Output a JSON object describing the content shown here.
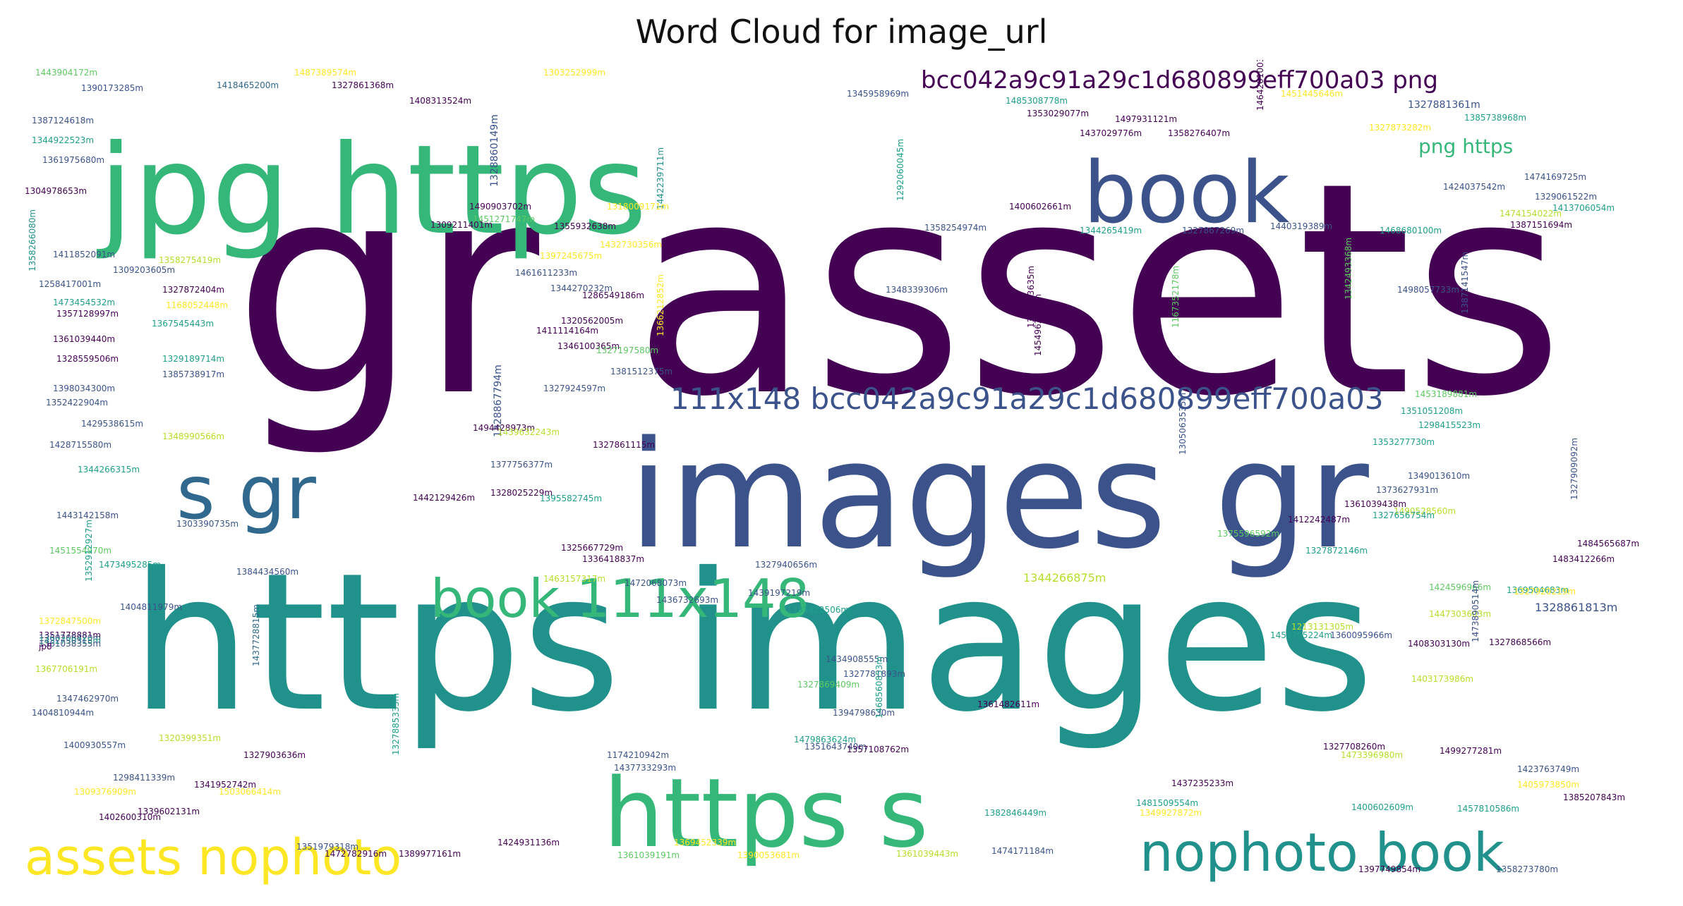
{
  "title": "Word Cloud for image_url",
  "palette": {
    "dark_purple": "#440154",
    "indigo": "#3b528b",
    "blue_teal": "#31688e",
    "teal": "#21918c",
    "green_teal": "#1f9e89",
    "green": "#35b779",
    "light_green": "#5ec962",
    "yellow_green": "#b5de2b",
    "yellow": "#fde725"
  },
  "words": [
    {
      "text": "gr assets",
      "weight": 1.0,
      "color": "#440154"
    },
    {
      "text": "https images",
      "weight": 0.88,
      "color": "#21918c"
    },
    {
      "text": "images gr",
      "weight": 0.66,
      "color": "#3b528b"
    },
    {
      "text": "jpg https",
      "weight": 0.55,
      "color": "#35b779"
    },
    {
      "text": "https s",
      "weight": 0.4,
      "color": "#35b779"
    },
    {
      "text": "book",
      "weight": 0.34,
      "color": "#3b528b"
    },
    {
      "text": "s gr",
      "weight": 0.3,
      "color": "#31688e"
    },
    {
      "text": "book 111x148",
      "weight": 0.22,
      "color": "#35b779"
    },
    {
      "text": "nophoto book",
      "weight": 0.22,
      "color": "#21918c"
    },
    {
      "text": "assets nophoto",
      "weight": 0.22,
      "color": "#fde725"
    },
    {
      "text": "111x148 bcc042a9c91a29c1d680899eff700a03",
      "weight": 0.12,
      "color": "#3b528b"
    },
    {
      "text": "bcc042a9c91a29c1d680899eff700a03 png",
      "weight": 0.1,
      "color": "#440154"
    },
    {
      "text": "png https",
      "weight": 0.09,
      "color": "#35b779"
    },
    {
      "text": "1328861813m",
      "weight": 0.05,
      "color": "#3b528b"
    },
    {
      "text": "1327881361m",
      "weight": 0.045,
      "color": "#3b528b"
    },
    {
      "text": "1344266875m",
      "weight": 0.045,
      "color": "#b5de2b"
    },
    {
      "text": "1328860149m",
      "weight": 0.045,
      "color": "#3b528b"
    },
    {
      "text": "1328867794m",
      "weight": 0.045,
      "color": "#3b528b"
    },
    {
      "text": "1443904172m",
      "weight": 0.03,
      "color": "#5ec962"
    },
    {
      "text": "1390173285m",
      "weight": 0.03,
      "color": "#3b528b"
    },
    {
      "text": "1387124618m",
      "weight": 0.03,
      "color": "#3b528b"
    },
    {
      "text": "1344922523m",
      "weight": 0.03,
      "color": "#1f9e89"
    },
    {
      "text": "1361975680m",
      "weight": 0.03,
      "color": "#3b528b"
    },
    {
      "text": "1304978653m",
      "weight": 0.03,
      "color": "#440154"
    },
    {
      "text": "1487389574m",
      "weight": 0.03,
      "color": "#fde725"
    },
    {
      "text": "1418465200m",
      "weight": 0.03,
      "color": "#31688e"
    },
    {
      "text": "1327861368m",
      "weight": 0.03,
      "color": "#440154"
    },
    {
      "text": "1408313524m",
      "weight": 0.03,
      "color": "#440154"
    },
    {
      "text": "1303252999m",
      "weight": 0.03,
      "color": "#fde725"
    },
    {
      "text": "1345958969m",
      "weight": 0.03,
      "color": "#3b528b"
    },
    {
      "text": "1485308778m",
      "weight": 0.03,
      "color": "#1f9e89"
    },
    {
      "text": "1353029077m",
      "weight": 0.03,
      "color": "#440154"
    },
    {
      "text": "1497931121m",
      "weight": 0.03,
      "color": "#440154"
    },
    {
      "text": "1437029776m",
      "weight": 0.03,
      "color": "#440154"
    },
    {
      "text": "1358276407m",
      "weight": 0.03,
      "color": "#440154"
    },
    {
      "text": "1451445646m",
      "weight": 0.03,
      "color": "#fde725"
    },
    {
      "text": "1327873282m",
      "weight": 0.03,
      "color": "#fde725"
    },
    {
      "text": "1385738968m",
      "weight": 0.03,
      "color": "#1f9e89"
    },
    {
      "text": "1474169725m",
      "weight": 0.03,
      "color": "#3b528b"
    },
    {
      "text": "1424037542m",
      "weight": 0.03,
      "color": "#3b528b"
    },
    {
      "text": "1329061522m",
      "weight": 0.03,
      "color": "#3b528b"
    },
    {
      "text": "1474154022m",
      "weight": 0.03,
      "color": "#b5de2b"
    },
    {
      "text": "1413706054m",
      "weight": 0.03,
      "color": "#1f9e89"
    },
    {
      "text": "1387151694m",
      "weight": 0.03,
      "color": "#440154"
    },
    {
      "text": "1468680100m",
      "weight": 0.03,
      "color": "#1f9e89"
    },
    {
      "text": "1440319389m",
      "weight": 0.03,
      "color": "#3b528b"
    },
    {
      "text": "1327867269m",
      "weight": 0.03,
      "color": "#3b528b"
    },
    {
      "text": "1344265419m",
      "weight": 0.03,
      "color": "#1f9e89"
    },
    {
      "text": "1358254974m",
      "weight": 0.03,
      "color": "#3b528b"
    },
    {
      "text": "1400602661m",
      "weight": 0.03,
      "color": "#440154"
    },
    {
      "text": "1442239711m",
      "weight": 0.03,
      "color": "#21918c"
    },
    {
      "text": "1490903702m",
      "weight": 0.03,
      "color": "#440154"
    },
    {
      "text": "1318009171m",
      "weight": 0.03,
      "color": "#fde725"
    },
    {
      "text": "1451271747m",
      "weight": 0.03,
      "color": "#5ec962"
    },
    {
      "text": "1309211401m",
      "weight": 0.03,
      "color": "#440154"
    },
    {
      "text": "1355932638m",
      "weight": 0.03,
      "color": "#440154"
    },
    {
      "text": "1358266080m",
      "weight": 0.03,
      "color": "#21918c"
    },
    {
      "text": "1411852091m",
      "weight": 0.03,
      "color": "#3b528b"
    },
    {
      "text": "1358275419m",
      "weight": 0.03,
      "color": "#b5de2b"
    },
    {
      "text": "1309203605m",
      "weight": 0.03,
      "color": "#3b528b"
    },
    {
      "text": "1258417001m",
      "weight": 0.03,
      "color": "#3b528b"
    },
    {
      "text": "1327872404m",
      "weight": 0.03,
      "color": "#440154"
    },
    {
      "text": "1473454532m",
      "weight": 0.03,
      "color": "#1f9e89"
    },
    {
      "text": "1168052448m",
      "weight": 0.03,
      "color": "#fde725"
    },
    {
      "text": "1357128997m",
      "weight": 0.03,
      "color": "#440154"
    },
    {
      "text": "1367545443m",
      "weight": 0.03,
      "color": "#1f9e89"
    },
    {
      "text": "1361039440m",
      "weight": 0.03,
      "color": "#440154"
    },
    {
      "text": "1328559506m",
      "weight": 0.03,
      "color": "#440154"
    },
    {
      "text": "1329189714m",
      "weight": 0.03,
      "color": "#1f9e89"
    },
    {
      "text": "1385738917m",
      "weight": 0.03,
      "color": "#3b528b"
    },
    {
      "text": "1398034300m",
      "weight": 0.03,
      "color": "#3b528b"
    },
    {
      "text": "1352422904m",
      "weight": 0.03,
      "color": "#3b528b"
    },
    {
      "text": "1429538615m",
      "weight": 0.03,
      "color": "#3b528b"
    },
    {
      "text": "1428715580m",
      "weight": 0.03,
      "color": "#3b528b"
    },
    {
      "text": "1348990566m",
      "weight": 0.03,
      "color": "#b5de2b"
    },
    {
      "text": "1344266315m",
      "weight": 0.03,
      "color": "#1f9e89"
    },
    {
      "text": "1443142158m",
      "weight": 0.03,
      "color": "#3b528b"
    },
    {
      "text": "1303390735m",
      "weight": 0.03,
      "color": "#3b528b"
    },
    {
      "text": "1451554970m",
      "weight": 0.03,
      "color": "#5ec962"
    },
    {
      "text": "1473495285m",
      "weight": 0.03,
      "color": "#1f9e89"
    },
    {
      "text": "1384434560m",
      "weight": 0.03,
      "color": "#3b528b"
    },
    {
      "text": "1352912927m",
      "weight": 0.03,
      "color": "#1f9e89"
    },
    {
      "text": "1404811979m",
      "weight": 0.03,
      "color": "#3b528b"
    },
    {
      "text": "1372847500m",
      "weight": 0.03,
      "color": "#fde725"
    },
    {
      "text": "1437728815m",
      "weight": 0.03,
      "color": "#31688e"
    },
    {
      "text": "1367706191m",
      "weight": 0.03,
      "color": "#b5de2b"
    },
    {
      "text": "1347462970m",
      "weight": 0.03,
      "color": "#3b528b"
    },
    {
      "text": "1404810944m",
      "weight": 0.03,
      "color": "#3b528b"
    },
    {
      "text": "1400930557m",
      "weight": 0.03,
      "color": "#3b528b"
    },
    {
      "text": "1320399351m",
      "weight": 0.03,
      "color": "#b5de2b"
    },
    {
      "text": "1327903636m",
      "weight": 0.03,
      "color": "#440154"
    },
    {
      "text": "1298411339m",
      "weight": 0.03,
      "color": "#3b528b"
    },
    {
      "text": "1341952742m",
      "weight": 0.03,
      "color": "#440154"
    },
    {
      "text": "1309376909m",
      "weight": 0.03,
      "color": "#fde725"
    },
    {
      "text": "1503066414m",
      "weight": 0.03,
      "color": "#fde725"
    },
    {
      "text": "1402600310m",
      "weight": 0.03,
      "color": "#440154"
    },
    {
      "text": "1339602131m",
      "weight": 0.03,
      "color": "#440154"
    },
    {
      "text": "1351979318m",
      "weight": 0.03,
      "color": "#3b528b"
    },
    {
      "text": "1472782916m",
      "weight": 0.03,
      "color": "#440154"
    },
    {
      "text": "1389977161m",
      "weight": 0.03,
      "color": "#440154"
    },
    {
      "text": "1424931136m",
      "weight": 0.03,
      "color": "#440154"
    },
    {
      "text": "1361039191m",
      "weight": 0.03,
      "color": "#5ec962"
    },
    {
      "text": "1369452339m",
      "weight": 0.03,
      "color": "#fde725"
    },
    {
      "text": "1390053681m",
      "weight": 0.03,
      "color": "#fde725"
    },
    {
      "text": "1361039443m",
      "weight": 0.03,
      "color": "#b5de2b"
    },
    {
      "text": "1474171184m",
      "weight": 0.03,
      "color": "#3b528b"
    },
    {
      "text": "1397749854m",
      "weight": 0.03,
      "color": "#440154"
    },
    {
      "text": "1358273780m",
      "weight": 0.03,
      "color": "#3b528b"
    },
    {
      "text": "1397245675m",
      "weight": 0.03,
      "color": "#fde725"
    },
    {
      "text": "1432730356m",
      "weight": 0.03,
      "color": "#fde725"
    },
    {
      "text": "1461611233m",
      "weight": 0.03,
      "color": "#3b528b"
    },
    {
      "text": "1344270232m",
      "weight": 0.03,
      "color": "#3b528b"
    },
    {
      "text": "1286549186m",
      "weight": 0.03,
      "color": "#440154"
    },
    {
      "text": "1366212852m",
      "weight": 0.03,
      "color": "#fde725"
    },
    {
      "text": "1320562005m",
      "weight": 0.03,
      "color": "#440154"
    },
    {
      "text": "1411114164m",
      "weight": 0.03,
      "color": "#440154"
    },
    {
      "text": "1346100365m",
      "weight": 0.03,
      "color": "#440154"
    },
    {
      "text": "1327197580m",
      "weight": 0.03,
      "color": "#5ec962"
    },
    {
      "text": "1381512375m",
      "weight": 0.03,
      "color": "#3b528b"
    },
    {
      "text": "1327924597m",
      "weight": 0.03,
      "color": "#3b528b"
    },
    {
      "text": "1327861115m",
      "weight": 0.03,
      "color": "#440154"
    },
    {
      "text": "1494428973m",
      "weight": 0.03,
      "color": "#440154"
    },
    {
      "text": "1439632243m",
      "weight": 0.03,
      "color": "#b5de2b"
    },
    {
      "text": "1377756377m",
      "weight": 0.03,
      "color": "#3b528b"
    },
    {
      "text": "1328025229m",
      "weight": 0.03,
      "color": "#440154"
    },
    {
      "text": "1442129426m",
      "weight": 0.03,
      "color": "#440154"
    },
    {
      "text": "1395582745m",
      "weight": 0.03,
      "color": "#1f9e89"
    },
    {
      "text": "1325667729m",
      "weight": 0.03,
      "color": "#440154"
    },
    {
      "text": "1336418837m",
      "weight": 0.03,
      "color": "#440154"
    },
    {
      "text": "1472068073m",
      "weight": 0.03,
      "color": "#3b528b"
    },
    {
      "text": "1327940656m",
      "weight": 0.03,
      "color": "#3b528b"
    },
    {
      "text": "1463157317m",
      "weight": 0.03,
      "color": "#b5de2b"
    },
    {
      "text": "1436732693m",
      "weight": 0.03,
      "color": "#3b528b"
    },
    {
      "text": "1439197219m",
      "weight": 0.03,
      "color": "#3b528b"
    },
    {
      "text": "1333822506m",
      "weight": 0.03,
      "color": "#1f9e89"
    },
    {
      "text": "1434908555m",
      "weight": 0.03,
      "color": "#3b528b"
    },
    {
      "text": "1327781893m",
      "weight": 0.03,
      "color": "#3b528b"
    },
    {
      "text": "1327869409m",
      "weight": 0.03,
      "color": "#5ec962"
    },
    {
      "text": "1394798630m",
      "weight": 0.03,
      "color": "#3b528b"
    },
    {
      "text": "1468560853m",
      "weight": 0.03,
      "color": "#1f9e89"
    },
    {
      "text": "1479863624m",
      "weight": 0.03,
      "color": "#1f9e89"
    },
    {
      "text": "1351643740m",
      "weight": 0.03,
      "color": "#3b528b"
    },
    {
      "text": "1174210942m",
      "weight": 0.03,
      "color": "#3b528b"
    },
    {
      "text": "1357108762m",
      "weight": 0.03,
      "color": "#440154"
    },
    {
      "text": "1327885335m",
      "weight": 0.03,
      "color": "#1f9e89"
    },
    {
      "text": "1437733293m",
      "weight": 0.03,
      "color": "#3b528b"
    },
    {
      "text": "1348339306m",
      "weight": 0.03,
      "color": "#3b528b"
    },
    {
      "text": "1498057733m",
      "weight": 0.03,
      "color": "#3b528b"
    },
    {
      "text": "1327873635m",
      "weight": 0.03,
      "color": "#440154"
    },
    {
      "text": "1454962884m",
      "weight": 0.03,
      "color": "#440154"
    },
    {
      "text": "1167352178m",
      "weight": 0.03,
      "color": "#5ec962"
    },
    {
      "text": "1342493368m",
      "weight": 0.03,
      "color": "#5ec962"
    },
    {
      "text": "1387141547m",
      "weight": 0.03,
      "color": "#3b528b"
    },
    {
      "text": "1292060045m",
      "weight": 0.03,
      "color": "#1f9e89"
    },
    {
      "text": "1464201003m",
      "weight": 0.03,
      "color": "#440154"
    },
    {
      "text": "1453189881m",
      "weight": 0.03,
      "color": "#5ec962"
    },
    {
      "text": "1351051208m",
      "weight": 0.03,
      "color": "#1f9e89"
    },
    {
      "text": "1298415523m",
      "weight": 0.03,
      "color": "#1f9e89"
    },
    {
      "text": "1353277730m",
      "weight": 0.03,
      "color": "#1f9e89"
    },
    {
      "text": "1305063535m",
      "weight": 0.03,
      "color": "#3b528b"
    },
    {
      "text": "1349013610m",
      "weight": 0.03,
      "color": "#3b528b"
    },
    {
      "text": "1373627931m",
      "weight": 0.03,
      "color": "#3b528b"
    },
    {
      "text": "1361039438m",
      "weight": 0.03,
      "color": "#440154"
    },
    {
      "text": "1490528560m",
      "weight": 0.03,
      "color": "#b5de2b"
    },
    {
      "text": "1412242487m",
      "weight": 0.03,
      "color": "#440154"
    },
    {
      "text": "1327656754m",
      "weight": 0.03,
      "color": "#1f9e89"
    },
    {
      "text": "1375596592m",
      "weight": 0.03,
      "color": "#5ec962"
    },
    {
      "text": "1327872146m",
      "weight": 0.03,
      "color": "#1f9e89"
    },
    {
      "text": "1424596966m",
      "weight": 0.03,
      "color": "#5ec962"
    },
    {
      "text": "1369504683m",
      "weight": 0.03,
      "color": "#1f9e89"
    },
    {
      "text": "1447303603m",
      "weight": 0.03,
      "color": "#b5de2b"
    },
    {
      "text": "1213131305m",
      "weight": 0.03,
      "color": "#b5de2b"
    },
    {
      "text": "1360095966m",
      "weight": 0.03,
      "color": "#3b528b"
    },
    {
      "text": "1327868566m",
      "weight": 0.03,
      "color": "#440154"
    },
    {
      "text": "1459795224m",
      "weight": 0.03,
      "color": "#1f9e89"
    },
    {
      "text": "1408303130m",
      "weight": 0.03,
      "color": "#440154"
    },
    {
      "text": "1403173986m",
      "weight": 0.03,
      "color": "#b5de2b"
    },
    {
      "text": "1327909092m",
      "weight": 0.03,
      "color": "#3b528b"
    },
    {
      "text": "1484565687m",
      "weight": 0.03,
      "color": "#440154"
    },
    {
      "text": "1483412266m",
      "weight": 0.03,
      "color": "#440154"
    },
    {
      "text": "1327920219m",
      "weight": 0.03,
      "color": "#fde725"
    },
    {
      "text": "1473890514m",
      "weight": 0.03,
      "color": "#3b528b"
    },
    {
      "text": "1327708260m",
      "weight": 0.03,
      "color": "#440154"
    },
    {
      "text": "1473396980m",
      "weight": 0.03,
      "color": "#b5de2b"
    },
    {
      "text": "1499277281m",
      "weight": 0.03,
      "color": "#440154"
    },
    {
      "text": "1423763749m",
      "weight": 0.03,
      "color": "#3b528b"
    },
    {
      "text": "1405973850m",
      "weight": 0.03,
      "color": "#fde725"
    },
    {
      "text": "1385207843m",
      "weight": 0.03,
      "color": "#440154"
    },
    {
      "text": "1437235233m",
      "weight": 0.03,
      "color": "#440154"
    },
    {
      "text": "1481509554m",
      "weight": 0.03,
      "color": "#1f9e89"
    },
    {
      "text": "1457810586m",
      "weight": 0.03,
      "color": "#1f9e89"
    },
    {
      "text": "1400602609m",
      "weight": 0.03,
      "color": "#1f9e89"
    },
    {
      "text": "1382846449m",
      "weight": 0.03,
      "color": "#1f9e89"
    },
    {
      "text": "1349927872m",
      "weight": 0.03,
      "color": "#fde725"
    },
    {
      "text": "1361482611m",
      "weight": 0.03,
      "color": "#440154"
    },
    {
      "text": "1351778881m",
      "weight": 0.03,
      "color": "#440154"
    },
    {
      "text": "1360206420m",
      "weight": 0.03,
      "color": "#3b528b"
    },
    {
      "text": "1432730315m",
      "weight": 0.03,
      "color": "#1f9e89"
    },
    {
      "text": "1361038355m",
      "weight": 0.03,
      "color": "#3b528b"
    },
    {
      "text": "jp8",
      "weight": 0.03,
      "color": "#440154"
    }
  ]
}
